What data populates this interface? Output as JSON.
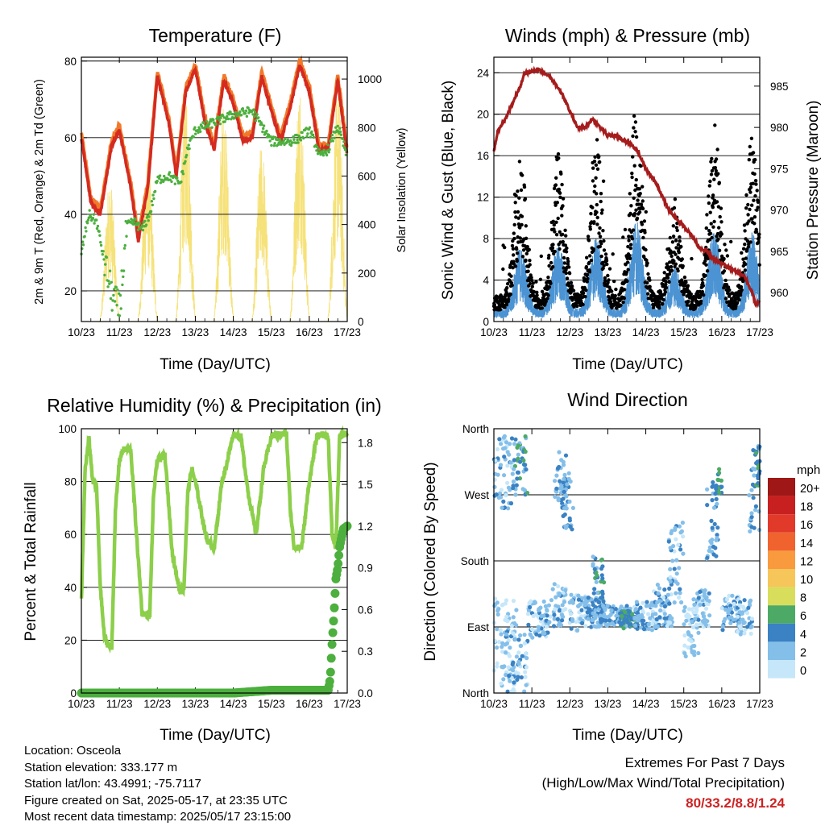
{
  "colors": {
    "temp_2m": "#d42a20",
    "temp_9m": "#f07a2a",
    "dewpoint": "#4caf3e",
    "solar": "#f6e27a",
    "gust": "#000000",
    "wind": "#4b93d2",
    "pressure": "#a51c1c",
    "humidity": "#8ccf4a",
    "precip": "#4caf3e",
    "extremes": "#cc2222"
  },
  "x_ticks": [
    "10/23",
    "11/23",
    "12/23",
    "13/23",
    "14/23",
    "15/23",
    "16/23",
    "17/23"
  ],
  "chart_data": [
    {
      "type": "line",
      "title": "Temperature (F)",
      "xlabel": "Time (Day/UTC)",
      "ylabel": "2m & 9m T (Red, Orange) & 2m Td (Green)",
      "y2label": "Solar Insolation (Yellow)",
      "ylim": [
        12,
        81
      ],
      "yticks": [
        20,
        40,
        60,
        80
      ],
      "y2lim": [
        0,
        1090
      ],
      "y2ticks": [
        0,
        200,
        400,
        600,
        800,
        1000
      ],
      "grid": "horizontal",
      "series": [
        {
          "key": "temp",
          "x": [
            10.0,
            10.25,
            10.5,
            10.8,
            11.0,
            11.3,
            11.5,
            11.75,
            12.0,
            12.3,
            12.5,
            12.75,
            13.0,
            13.25,
            13.5,
            13.75,
            14.0,
            14.25,
            14.5,
            14.75,
            15.0,
            15.25,
            15.5,
            15.75,
            16.0,
            16.25,
            16.5,
            16.75,
            17.0
          ],
          "y": [
            60,
            43,
            40,
            58,
            62,
            47,
            33,
            47,
            76,
            64,
            50,
            72,
            78,
            64,
            57,
            75,
            69,
            59,
            60,
            76,
            67,
            59,
            68,
            79,
            72,
            57,
            57,
            75,
            55
          ]
        },
        {
          "key": "dew",
          "x": [
            10.0,
            10.2,
            10.4,
            10.6,
            10.8,
            11.0,
            11.2,
            11.4,
            11.6,
            11.8,
            12.0,
            12.3,
            12.6,
            12.8,
            13.0,
            13.5,
            14.0,
            14.5,
            15.0,
            15.5,
            15.75,
            16.0,
            16.3,
            16.5,
            16.75,
            17.0
          ],
          "y": [
            30,
            40,
            38,
            28,
            19,
            15,
            37,
            38,
            36,
            40,
            49,
            50,
            48,
            57,
            62,
            64,
            66,
            67,
            59,
            59,
            60,
            62,
            55,
            57,
            63,
            55
          ]
        },
        {
          "key": "solar_days",
          "peaks": [
            {
              "day": 10.75,
              "max": 600
            },
            {
              "day": 11.75,
              "max": 700
            },
            {
              "day": 12.75,
              "max": 1000
            },
            {
              "day": 13.75,
              "max": 920
            },
            {
              "day": 14.75,
              "max": 750
            },
            {
              "day": 15.75,
              "max": 1010
            },
            {
              "day": 16.75,
              "max": 980
            }
          ]
        }
      ]
    },
    {
      "type": "scatter",
      "title": "Winds (mph) & Pressure (mb)",
      "xlabel": "Time (Day/UTC)",
      "ylabel": "Sonic Wind & Gust (Blue, Black)",
      "y2label": "Station Pressure (Maroon)",
      "ylim": [
        0,
        25.5
      ],
      "yticks": [
        0,
        4,
        8,
        12,
        16,
        20,
        24
      ],
      "y2lim": [
        956.5,
        988.5
      ],
      "y2ticks": [
        960,
        965,
        970,
        975,
        980,
        985
      ],
      "grid": "horizontal",
      "series": [
        {
          "key": "gust_peaks",
          "centers": [
            10.7,
            11.7,
            12.7,
            13.75,
            14.75,
            15.8,
            16.8
          ],
          "heights": [
            14,
            15,
            16,
            20,
            10,
            18,
            17
          ]
        },
        {
          "key": "pressure",
          "x": [
            10.0,
            10.1,
            10.3,
            10.5,
            10.7,
            10.8,
            11.0,
            11.2,
            11.5,
            11.8,
            12.0,
            12.2,
            12.4,
            12.6,
            12.8,
            13.0,
            13.2,
            13.4,
            13.6,
            13.8,
            14.0,
            14.3,
            14.6,
            14.8,
            15.0,
            15.2,
            15.4,
            15.6,
            15.8,
            16.0,
            16.2,
            16.4,
            16.6,
            16.8,
            16.9,
            17.0
          ],
          "y": [
            977,
            979.5,
            981,
            983,
            985,
            986.5,
            986.8,
            987,
            986,
            984,
            982,
            980,
            980,
            981,
            980,
            979,
            979,
            978.5,
            978,
            977,
            975,
            973,
            970,
            969,
            968,
            967,
            965.5,
            965,
            964,
            963.5,
            963,
            962.5,
            962,
            960,
            958.5,
            959
          ]
        }
      ]
    },
    {
      "type": "line",
      "title": "Relative Humidity (%) & Precipitation (in)",
      "xlabel": "Time (Day/UTC)",
      "ylabel": "Percent & Total Rainfall",
      "ylim": [
        0,
        100
      ],
      "yticks": [
        0,
        20,
        40,
        60,
        80,
        100
      ],
      "y2lim": [
        0,
        1.9
      ],
      "y2ticks": [
        0.0,
        0.3,
        0.6,
        0.9,
        1.2,
        1.5,
        1.8
      ],
      "grid": "horizontal",
      "series": [
        {
          "key": "rh",
          "x": [
            10.0,
            10.1,
            10.2,
            10.3,
            10.4,
            10.5,
            10.6,
            10.7,
            10.8,
            10.9,
            11.0,
            11.1,
            11.3,
            11.5,
            11.6,
            11.7,
            11.8,
            11.9,
            12.0,
            12.2,
            12.4,
            12.6,
            12.7,
            12.8,
            12.9,
            13.0,
            13.3,
            13.5,
            13.7,
            13.8,
            14.0,
            14.2,
            14.4,
            14.6,
            14.8,
            15.0,
            15.2,
            15.4,
            15.5,
            15.6,
            15.8,
            16.0,
            16.2,
            16.35,
            16.5,
            16.6,
            16.7,
            16.8,
            16.9,
            17.0
          ],
          "y": [
            35,
            85,
            96,
            80,
            78,
            40,
            22,
            18,
            17,
            70,
            88,
            92,
            92,
            50,
            30,
            30,
            29,
            75,
            88,
            90,
            52,
            38,
            40,
            75,
            85,
            80,
            58,
            55,
            80,
            85,
            98,
            97,
            75,
            60,
            85,
            97,
            98,
            98,
            70,
            55,
            55,
            80,
            97,
            98,
            97,
            60,
            55,
            97,
            98,
            98
          ]
        },
        {
          "key": "precip",
          "x": [
            10.0,
            14.0,
            15.0,
            15.8,
            16.0,
            16.3,
            16.5,
            16.55,
            16.6,
            16.65,
            16.7,
            16.75,
            16.8,
            16.85,
            16.9,
            17.0
          ],
          "y": [
            0.0,
            0.0,
            0.02,
            0.02,
            0.02,
            0.02,
            0.02,
            0.1,
            0.35,
            0.56,
            0.82,
            0.9,
            1.05,
            1.12,
            1.18,
            1.2
          ]
        }
      ]
    },
    {
      "type": "scatter",
      "title": "Wind Direction",
      "xlabel": "Time (Day/UTC)",
      "ylabel": "Direction (Colored By Speed)",
      "yticks": [
        "North",
        "West",
        "South",
        "East",
        "North"
      ],
      "ylim": [
        360,
        0
      ],
      "grid": "horizontal",
      "legend": {
        "title": "mph",
        "labels": [
          "20+",
          "18",
          "16",
          "14",
          "12",
          "10",
          "8",
          "6",
          "4",
          "2",
          "0"
        ],
        "colors": [
          "#a01717",
          "#c82020",
          "#e13a2b",
          "#f0632f",
          "#f99a3f",
          "#f6c65a",
          "#d8de5c",
          "#4daa66",
          "#3a82c4",
          "#84bfea",
          "#c6e7fa"
        ]
      }
    }
  ],
  "footer": {
    "location": "Location: Osceola",
    "elevation": "Station elevation: 333.177 m",
    "latlon": "Station lat/lon: 43.4991; -75.7117",
    "created": "Figure created on Sat, 2025-05-17, at 23:35 UTC",
    "recent": "Most recent data timestamp: 2025/05/17 23:15:00",
    "extremes_title": "Extremes For Past 7 Days",
    "extremes_desc": "(High/Low/Max Wind/Total Precipitation)",
    "extremes_values": "80/33.2/8.8/1.24"
  }
}
